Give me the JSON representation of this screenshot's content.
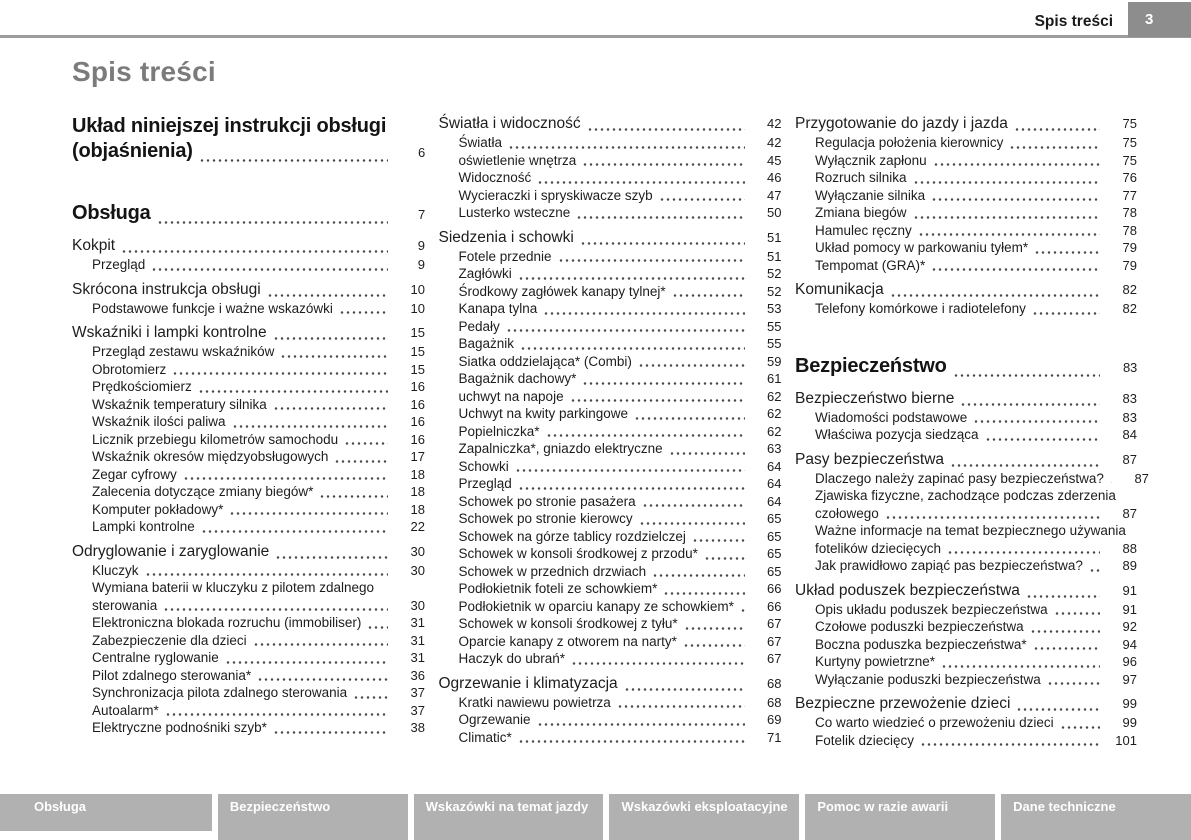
{
  "header": {
    "title": "Spis treści",
    "page_number": "3"
  },
  "page_title": "Spis treści",
  "colors": {
    "tab_bg": "#b1b1b1",
    "page_box_bg": "#8d8d8d",
    "rule": "#9c9c9c",
    "title": "#7b7b7b",
    "text": "#1d1d1d",
    "dots": "#4b4b4b"
  },
  "toc": {
    "columns": [
      {
        "entries": [
          {
            "style": "chapter",
            "lines": [
              "Układ niniejszej instrukcji obsługi",
              "(objaśnienia)"
            ],
            "page": "6"
          },
          {
            "style": "chapter",
            "lines": [
              "Obsługa"
            ],
            "page": "7"
          },
          {
            "style": "section",
            "lines": [
              "Kokpit"
            ],
            "page": "9"
          },
          {
            "style": "sub",
            "lines": [
              "Przegląd"
            ],
            "page": "9"
          },
          {
            "style": "section",
            "lines": [
              "Skrócona instrukcja obsługi"
            ],
            "page": "10"
          },
          {
            "style": "sub",
            "lines": [
              "Podstawowe funkcje i ważne wskazówki"
            ],
            "page": "10"
          },
          {
            "style": "section",
            "lines": [
              "Wskaźniki i lampki kontrolne"
            ],
            "page": "15"
          },
          {
            "style": "sub",
            "lines": [
              "Przegląd zestawu wskaźników"
            ],
            "page": "15"
          },
          {
            "style": "sub",
            "lines": [
              "Obrotomierz"
            ],
            "page": "15"
          },
          {
            "style": "sub",
            "lines": [
              "Prędkościomierz"
            ],
            "page": "16"
          },
          {
            "style": "sub",
            "lines": [
              "Wskaźnik temperatury silnika"
            ],
            "page": "16"
          },
          {
            "style": "sub",
            "lines": [
              "Wskaźnik ilości paliwa"
            ],
            "page": "16"
          },
          {
            "style": "sub",
            "lines": [
              "Licznik przebiegu kilometrów samochodu"
            ],
            "page": "16"
          },
          {
            "style": "sub",
            "lines": [
              "Wskaźnik okresów międzyobsługowych"
            ],
            "page": "17"
          },
          {
            "style": "sub",
            "lines": [
              "Zegar cyfrowy"
            ],
            "page": "18"
          },
          {
            "style": "sub",
            "lines": [
              "Zalecenia dotyczące zmiany biegów*"
            ],
            "page": "18"
          },
          {
            "style": "sub",
            "lines": [
              "Komputer pokładowy*"
            ],
            "page": "18"
          },
          {
            "style": "sub",
            "lines": [
              "Lampki kontrolne"
            ],
            "page": "22"
          },
          {
            "style": "section",
            "lines": [
              "Odryglowanie i zaryglowanie"
            ],
            "page": "30"
          },
          {
            "style": "sub",
            "lines": [
              "Kluczyk"
            ],
            "page": "30"
          },
          {
            "style": "sub",
            "lines": [
              "Wymiana baterii w kluczyku z pilotem zdalnego",
              "sterowania"
            ],
            "page": "30"
          },
          {
            "style": "sub",
            "lines": [
              "Elektroniczna blokada rozruchu (immobiliser)"
            ],
            "page": "31"
          },
          {
            "style": "sub",
            "lines": [
              "Zabezpieczenie dla dzieci"
            ],
            "page": "31"
          },
          {
            "style": "sub",
            "lines": [
              "Centralne ryglowanie"
            ],
            "page": "31"
          },
          {
            "style": "sub",
            "lines": [
              "Pilot zdalnego sterowania*"
            ],
            "page": "36"
          },
          {
            "style": "sub",
            "lines": [
              "Synchronizacja pilota zdalnego sterowania"
            ],
            "page": "37"
          },
          {
            "style": "sub",
            "lines": [
              "Autoalarm*"
            ],
            "page": "37"
          },
          {
            "style": "sub",
            "lines": [
              "Elektryczne podnośniki szyb*"
            ],
            "page": "38"
          }
        ]
      },
      {
        "entries": [
          {
            "style": "section",
            "lines": [
              "Światła i widoczność"
            ],
            "page": "42"
          },
          {
            "style": "sub",
            "lines": [
              "Światła"
            ],
            "page": "42"
          },
          {
            "style": "sub",
            "lines": [
              "oświetlenie wnętrza"
            ],
            "page": "45"
          },
          {
            "style": "sub",
            "lines": [
              "Widoczność"
            ],
            "page": "46"
          },
          {
            "style": "sub",
            "lines": [
              "Wycieraczki i spryskiwacze szyb"
            ],
            "page": "47"
          },
          {
            "style": "sub",
            "lines": [
              "Lusterko wsteczne"
            ],
            "page": "50"
          },
          {
            "style": "section",
            "lines": [
              "Siedzenia i schowki"
            ],
            "page": "51"
          },
          {
            "style": "sub",
            "lines": [
              "Fotele przednie"
            ],
            "page": "51"
          },
          {
            "style": "sub",
            "lines": [
              "Zagłówki"
            ],
            "page": "52"
          },
          {
            "style": "sub",
            "lines": [
              "Środkowy zagłówek kanapy tylnej*"
            ],
            "page": "52"
          },
          {
            "style": "sub",
            "lines": [
              "Kanapa tylna"
            ],
            "page": "53"
          },
          {
            "style": "sub",
            "lines": [
              "Pedały"
            ],
            "page": "55"
          },
          {
            "style": "sub",
            "lines": [
              "Bagażnik"
            ],
            "page": "55"
          },
          {
            "style": "sub",
            "lines": [
              "Siatka oddzielająca* (Combi)"
            ],
            "page": "59"
          },
          {
            "style": "sub",
            "lines": [
              "Bagażnik dachowy*"
            ],
            "page": "61"
          },
          {
            "style": "sub",
            "lines": [
              "uchwyt na napoje"
            ],
            "page": "62"
          },
          {
            "style": "sub",
            "lines": [
              "Uchwyt na kwity parkingowe"
            ],
            "page": "62"
          },
          {
            "style": "sub",
            "lines": [
              "Popielniczka*"
            ],
            "page": "62"
          },
          {
            "style": "sub",
            "lines": [
              "Zapalniczka*, gniazdo elektryczne"
            ],
            "page": "63"
          },
          {
            "style": "sub",
            "lines": [
              "Schowki"
            ],
            "page": "64"
          },
          {
            "style": "sub",
            "lines": [
              "Przegląd"
            ],
            "page": "64"
          },
          {
            "style": "sub",
            "lines": [
              "Schowek po stronie pasażera"
            ],
            "page": "64"
          },
          {
            "style": "sub",
            "lines": [
              "Schowek po stronie kierowcy"
            ],
            "page": "65"
          },
          {
            "style": "sub",
            "lines": [
              "Schowek na górze tablicy rozdzielczej"
            ],
            "page": "65"
          },
          {
            "style": "sub",
            "lines": [
              "Schowek w konsoli środkowej z przodu*"
            ],
            "page": "65"
          },
          {
            "style": "sub",
            "lines": [
              "Schowek w przednich drzwiach"
            ],
            "page": "65"
          },
          {
            "style": "sub",
            "lines": [
              "Podłokietnik foteli ze schowkiem*"
            ],
            "page": "66"
          },
          {
            "style": "sub",
            "lines": [
              "Podłokietnik w oparciu kanapy ze schowkiem*"
            ],
            "page": "66"
          },
          {
            "style": "sub",
            "lines": [
              "Schowek w konsoli środkowej z tyłu*"
            ],
            "page": "67"
          },
          {
            "style": "sub",
            "lines": [
              "Oparcie kanapy z otworem na narty*"
            ],
            "page": "67"
          },
          {
            "style": "sub",
            "lines": [
              "Haczyk do ubrań*"
            ],
            "page": "67"
          },
          {
            "style": "section",
            "lines": [
              "Ogrzewanie i klimatyzacja"
            ],
            "page": "68"
          },
          {
            "style": "sub",
            "lines": [
              "Kratki nawiewu powietrza"
            ],
            "page": "68"
          },
          {
            "style": "sub",
            "lines": [
              "Ogrzewanie"
            ],
            "page": "69"
          },
          {
            "style": "sub",
            "lines": [
              "Climatic*"
            ],
            "page": "71"
          }
        ]
      },
      {
        "entries": [
          {
            "style": "section",
            "lines": [
              "Przygotowanie do jazdy i jazda"
            ],
            "page": "75"
          },
          {
            "style": "sub",
            "lines": [
              "Regulacja położenia kierownicy"
            ],
            "page": "75"
          },
          {
            "style": "sub",
            "lines": [
              "Wyłącznik zapłonu"
            ],
            "page": "75"
          },
          {
            "style": "sub",
            "lines": [
              "Rozruch silnika"
            ],
            "page": "76"
          },
          {
            "style": "sub",
            "lines": [
              "Wyłączanie silnika"
            ],
            "page": "77"
          },
          {
            "style": "sub",
            "lines": [
              "Zmiana biegów"
            ],
            "page": "78"
          },
          {
            "style": "sub",
            "lines": [
              "Hamulec ręczny"
            ],
            "page": "78"
          },
          {
            "style": "sub",
            "lines": [
              "Układ pomocy w parkowaniu tyłem*"
            ],
            "page": "79"
          },
          {
            "style": "sub",
            "lines": [
              "Tempomat (GRA)*"
            ],
            "page": "79"
          },
          {
            "style": "section",
            "lines": [
              "Komunikacja"
            ],
            "page": "82"
          },
          {
            "style": "sub",
            "lines": [
              "Telefony komórkowe i radiotelefony"
            ],
            "page": "82"
          },
          {
            "style": "chapter",
            "lines": [
              "Bezpieczeństwo"
            ],
            "page": "83"
          },
          {
            "style": "section",
            "lines": [
              "Bezpieczeństwo bierne"
            ],
            "page": "83"
          },
          {
            "style": "sub",
            "lines": [
              "Wiadomości podstawowe"
            ],
            "page": "83"
          },
          {
            "style": "sub",
            "lines": [
              "Właściwa pozycja siedząca"
            ],
            "page": "84"
          },
          {
            "style": "section",
            "lines": [
              "Pasy bezpieczeństwa"
            ],
            "page": "87"
          },
          {
            "style": "sub",
            "lines": [
              "Dlaczego należy zapinać pasy bezpieczeństwa?"
            ],
            "page": "87"
          },
          {
            "style": "sub",
            "lines": [
              "Zjawiska fizyczne, zachodzące podczas zderzenia",
              "czołowego"
            ],
            "page": "87"
          },
          {
            "style": "sub",
            "lines": [
              "Ważne informacje na temat bezpiecznego używania",
              "fotelików dziecięcych"
            ],
            "page": "88"
          },
          {
            "style": "sub",
            "lines": [
              "Jak prawidłowo zapiąć pas bezpieczeństwa?"
            ],
            "page": "89"
          },
          {
            "style": "section",
            "lines": [
              "Układ poduszek bezpieczeństwa"
            ],
            "page": "91"
          },
          {
            "style": "sub",
            "lines": [
              "Opis układu poduszek bezpieczeństwa"
            ],
            "page": "91"
          },
          {
            "style": "sub",
            "lines": [
              "Czołowe poduszki bezpieczeństwa"
            ],
            "page": "92"
          },
          {
            "style": "sub",
            "lines": [
              "Boczna poduszka bezpieczeństwa*"
            ],
            "page": "94"
          },
          {
            "style": "sub",
            "lines": [
              "Kurtyny powietrzne*"
            ],
            "page": "96"
          },
          {
            "style": "sub",
            "lines": [
              "Wyłączanie poduszki bezpieczeństwa"
            ],
            "page": "97"
          },
          {
            "style": "section",
            "lines": [
              "Bezpieczne przewożenie dzieci"
            ],
            "page": "99"
          },
          {
            "style": "sub",
            "lines": [
              "Co warto wiedzieć o przewożeniu dzieci"
            ],
            "page": "99"
          },
          {
            "style": "sub",
            "lines": [
              "Fotelik dziecięcy"
            ],
            "page": "101"
          }
        ]
      }
    ]
  },
  "footer_tabs": [
    "Obsługa",
    "Bezpieczeństwo",
    "Wskazówki na temat jazdy",
    "Wskazówki eksploatacyjne",
    "Pomoc w razie awarii",
    "Dane techniczne"
  ]
}
